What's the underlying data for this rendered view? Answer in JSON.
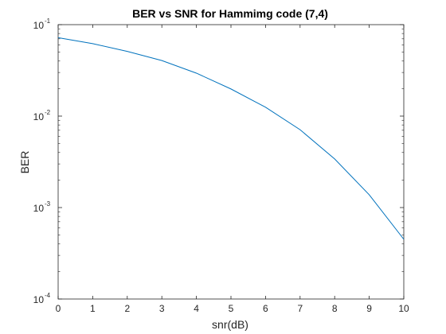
{
  "chart_data": {
    "type": "line",
    "title": "BER vs SNR for Hammimg code (7,4)",
    "xlabel": "snr(dB)",
    "ylabel": "BER",
    "xlim": [
      0,
      10
    ],
    "ylim": [
      0.0001,
      0.1
    ],
    "yscale": "log",
    "grid": false,
    "x_ticks": [
      "0",
      "1",
      "2",
      "3",
      "4",
      "5",
      "6",
      "7",
      "8",
      "9",
      "10"
    ],
    "y_ticks": [
      {
        "base": "10",
        "exp": "-4"
      },
      {
        "base": "10",
        "exp": "-3"
      },
      {
        "base": "10",
        "exp": "-2"
      },
      {
        "base": "10",
        "exp": "-1"
      }
    ],
    "series": [
      {
        "color": "#0072BD",
        "x": [
          0,
          1,
          2,
          3,
          4,
          5,
          6,
          7,
          8,
          9,
          10
        ],
        "y": [
          0.072,
          0.062,
          0.051,
          0.0405,
          0.0295,
          0.0198,
          0.0125,
          0.0071,
          0.0034,
          0.00138,
          0.00045
        ]
      }
    ]
  }
}
